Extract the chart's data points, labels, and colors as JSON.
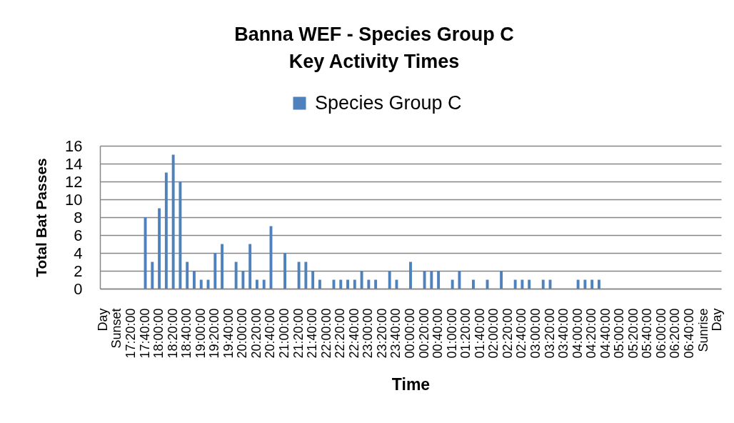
{
  "chart_data": {
    "type": "bar",
    "title": "Banna WEF - Species Group C\nKey Activity Times",
    "xlabel": "Time",
    "ylabel": "Total Bat Passes",
    "categories": [
      "Day",
      null,
      "Sunset",
      null,
      "17:20:00",
      null,
      "17:40:00",
      null,
      "18:00:00",
      null,
      "18:20:00",
      null,
      "18:40:00",
      null,
      "19:00:00",
      null,
      "19:20:00",
      null,
      "19:40:00",
      null,
      "20:00:00",
      null,
      "20:20:00",
      null,
      "20:40:00",
      null,
      "21:00:00",
      null,
      "21:20:00",
      null,
      "21:40:00",
      null,
      "22:00:00",
      null,
      "22:20:00",
      null,
      "22:40:00",
      null,
      "23:00:00",
      null,
      "23:20:00",
      null,
      "23:40:00",
      null,
      "00:00:00",
      null,
      "00:20:00",
      null,
      "00:40:00",
      null,
      "01:00:00",
      null,
      "01:20:00",
      null,
      "01:40:00",
      null,
      "02:00:00",
      null,
      "02:20:00",
      null,
      "02:40:00",
      null,
      "03:00:00",
      null,
      "03:20:00",
      null,
      "03:40:00",
      null,
      "04:00:00",
      null,
      "04:20:00",
      null,
      "04:40:00",
      null,
      "05:00:00",
      null,
      "05:20:00",
      null,
      "05:40:00",
      null,
      "06:00:00",
      null,
      "06:20:00",
      null,
      "06:40:00",
      null,
      "Sunrise",
      null,
      "Day"
    ],
    "series": [
      {
        "name": "Species Group C",
        "color": "#4f81bd",
        "values": [
          null,
          null,
          null,
          null,
          null,
          null,
          8,
          3,
          9,
          13,
          15,
          12,
          3,
          2,
          1,
          1,
          4,
          5,
          null,
          3,
          2,
          5,
          1,
          1,
          7,
          null,
          4,
          null,
          3,
          3,
          2,
          1,
          null,
          1,
          1,
          1,
          1,
          2,
          1,
          1,
          null,
          2,
          1,
          null,
          3,
          null,
          2,
          2,
          2,
          null,
          1,
          2,
          null,
          1,
          null,
          1,
          null,
          2,
          null,
          1,
          1,
          1,
          null,
          1,
          1,
          null,
          null,
          null,
          1,
          1,
          1,
          1,
          null,
          null,
          null,
          null,
          null,
          null,
          null,
          null,
          null,
          null,
          null,
          null,
          null,
          null,
          null,
          null,
          null
        ]
      }
    ],
    "ylim": [
      0,
      16
    ],
    "yticks": [
      0,
      2,
      4,
      6,
      8,
      10,
      12,
      14,
      16
    ],
    "grid": "y",
    "legend": "top"
  }
}
